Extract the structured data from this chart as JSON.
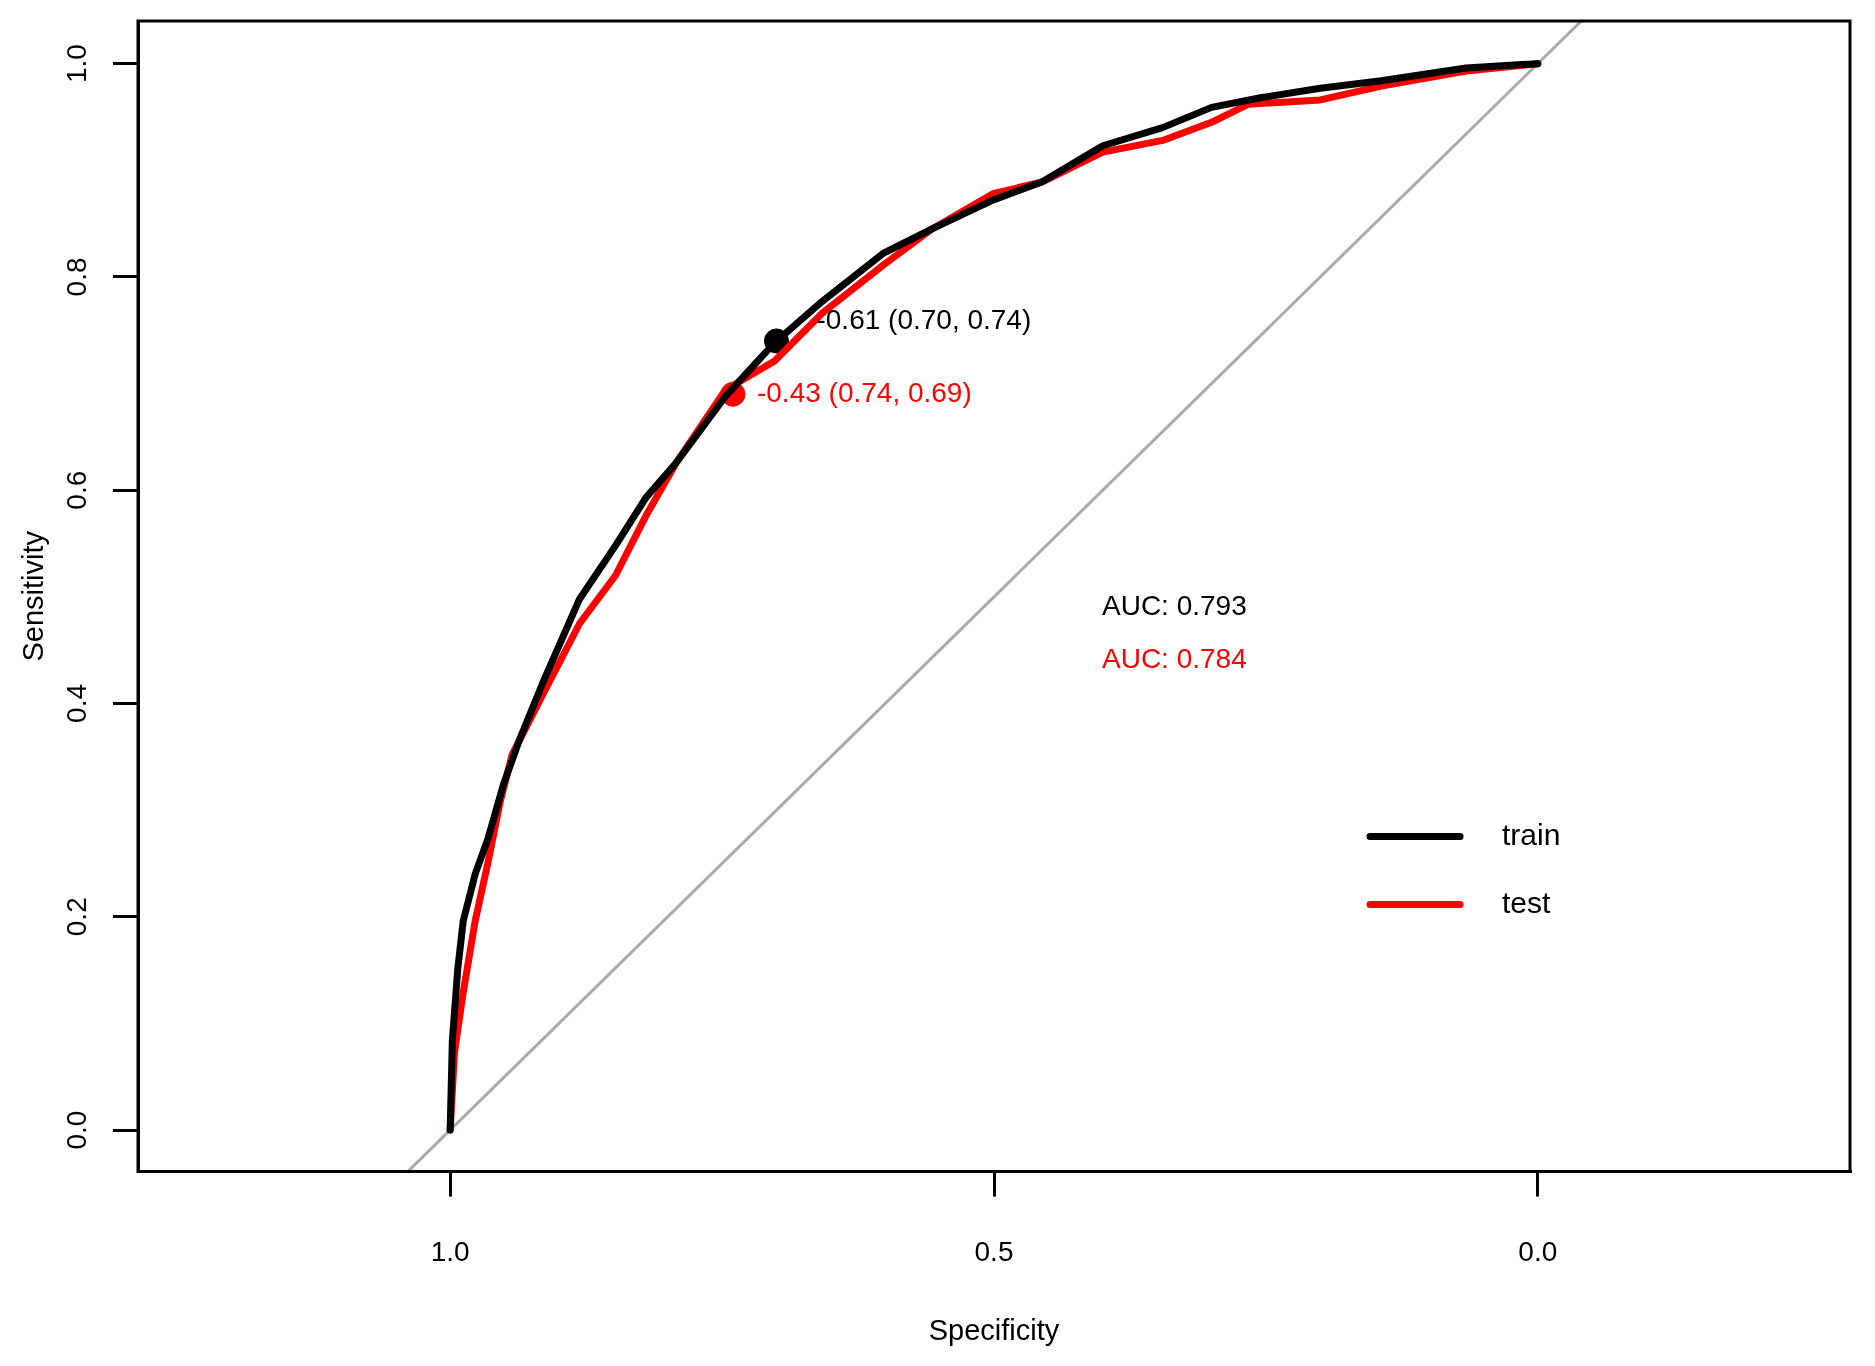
{
  "chart_data": {
    "type": "line",
    "xlabel": "Specificity",
    "ylabel": "Sensitivity",
    "xlim": [
      1.287,
      -0.287
    ],
    "ylim": [
      -0.039,
      1.04
    ],
    "xticks": [
      {
        "value": 1,
        "label": "1.0"
      },
      {
        "value": 0.5,
        "label": "0.5"
      },
      {
        "value": 0,
        "label": "0.0"
      }
    ],
    "yticks": [
      {
        "value": 0,
        "label": "0.0"
      },
      {
        "value": 0.2,
        "label": "0.2"
      },
      {
        "value": 0.4,
        "label": "0.4"
      },
      {
        "value": 0.6,
        "label": "0.6"
      },
      {
        "value": 0.8,
        "label": "0.8"
      },
      {
        "value": 1,
        "label": "1.0"
      }
    ],
    "grid": false,
    "legend": "bottom right",
    "marker": "none",
    "line_style": "solid",
    "series": [
      {
        "name": "train",
        "color": "#000000",
        "x": [
          1.0,
          0.998,
          0.993,
          0.988,
          0.977,
          0.965,
          0.951,
          0.937,
          0.915,
          0.881,
          0.848,
          0.82,
          0.792,
          0.747,
          0.702,
          0.658,
          0.602,
          0.557,
          0.501,
          0.456,
          0.4,
          0.345,
          0.3,
          0.255,
          0.2,
          0.144,
          0.066,
          0.0
        ],
        "values": [
          0.0,
          0.084,
          0.151,
          0.196,
          0.24,
          0.274,
          0.324,
          0.364,
          0.419,
          0.498,
          0.548,
          0.593,
          0.626,
          0.688,
          0.738,
          0.777,
          0.822,
          0.845,
          0.872,
          0.889,
          0.923,
          0.94,
          0.959,
          0.968,
          0.977,
          0.984,
          0.996,
          1.0
        ]
      },
      {
        "name": "test",
        "color": "#ff0000",
        "x": [
          1.0,
          0.996,
          0.988,
          0.977,
          0.965,
          0.954,
          0.943,
          0.915,
          0.881,
          0.848,
          0.82,
          0.792,
          0.747,
          0.702,
          0.658,
          0.602,
          0.557,
          0.501,
          0.456,
          0.4,
          0.345,
          0.3,
          0.266,
          0.2,
          0.144,
          0.066,
          0.0
        ],
        "values": [
          0.0,
          0.073,
          0.129,
          0.196,
          0.252,
          0.308,
          0.352,
          0.408,
          0.475,
          0.52,
          0.576,
          0.626,
          0.694,
          0.721,
          0.766,
          0.811,
          0.845,
          0.878,
          0.889,
          0.917,
          0.928,
          0.945,
          0.962,
          0.966,
          0.979,
          0.993,
          1.0
        ]
      },
      {
        "type": "line",
        "color": "#aaaaaa",
        "x": [
          1.039,
          -0.04
        ],
        "values": [
          -0.039,
          1.04
        ]
      },
      {
        "type": "scatter",
        "marker": "circle",
        "color": "#000000",
        "x": [
          0.7
        ],
        "values": [
          0.74
        ]
      },
      {
        "type": "scatter",
        "marker": "circle",
        "color": "#ff0000",
        "x": [
          0.74
        ],
        "values": [
          0.69
        ]
      }
    ],
    "annotations": [
      {
        "text": "-0.61 (0.70, 0.74)",
        "x": 0.7,
        "y": 0.74
      },
      {
        "text": "-0.43 (0.74, 0.69)",
        "x": 0.74,
        "y": 0.69
      },
      "AUC: 0.793",
      "AUC: 0.784"
    ]
  }
}
